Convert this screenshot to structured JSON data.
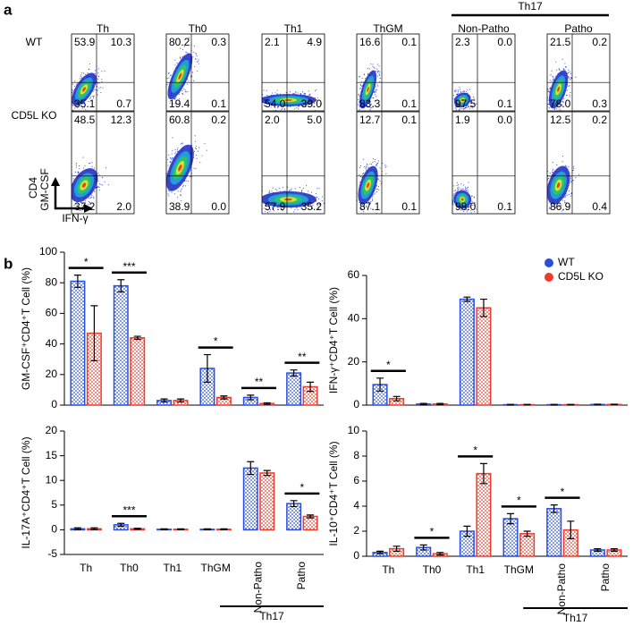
{
  "panel_a": {
    "label": "a",
    "columns": [
      "Th",
      "Th0",
      "Th1",
      "ThGM",
      "Non-Patho",
      "Patho"
    ],
    "group": "Th17",
    "rows": [
      {
        "name": "WT",
        "quadrants": [
          [
            "53.9",
            "10.3",
            "35.1",
            "0.7"
          ],
          [
            "80.2",
            "0.3",
            "19.4",
            "0.1"
          ],
          [
            "2.1",
            "4.9",
            "54.0",
            "39.0"
          ],
          [
            "16.6",
            "0.1",
            "83.3",
            "0.1"
          ],
          [
            "2.3",
            "0.0",
            "97.5",
            "0.1"
          ],
          [
            "21.5",
            "0.2",
            "78.0",
            "0.3"
          ]
        ]
      },
      {
        "name": "CD5L KO",
        "quadrants": [
          [
            "48.5",
            "12.3",
            "37.2",
            "2.0"
          ],
          [
            "60.8",
            "0.2",
            "38.9",
            "0.0"
          ],
          [
            "2.0",
            "5.0",
            "57.9",
            "35.2"
          ],
          [
            "12.7",
            "0.1",
            "87.1",
            "0.1"
          ],
          [
            "1.9",
            "0.0",
            "98.0",
            "0.1"
          ],
          [
            "12.5",
            "0.2",
            "86.9",
            "0.4"
          ]
        ]
      }
    ],
    "y_axis": [
      "CD4",
      "GM-CSF"
    ],
    "x_axis": "IFN-γ"
  },
  "panel_b": {
    "label": "b"
  },
  "chart_data": [
    {
      "type": "bar",
      "ylabel": "GM-CSF⁺CD4⁺T Cell (%)",
      "ylim": [
        0,
        100
      ],
      "yticks": [
        0,
        20,
        40,
        60,
        80,
        100
      ],
      "series": [
        {
          "color": "#2a4fe0",
          "values": [
            81,
            78,
            3,
            24,
            5,
            21
          ],
          "errors": [
            4,
            4,
            1,
            9,
            1.5,
            2
          ]
        },
        {
          "color": "#ef3b2c",
          "values": [
            47,
            44,
            3,
            5,
            1,
            12
          ],
          "errors": [
            18,
            1,
            1,
            1,
            0.5,
            3
          ]
        }
      ],
      "significance": [
        "*",
        "***",
        null,
        "*",
        "**",
        "**"
      ]
    },
    {
      "type": "bar",
      "ylabel": "IFN-γ⁺CD4⁺T Cell (%)",
      "ylim": [
        0,
        60
      ],
      "yticks": [
        0,
        20,
        40,
        60
      ],
      "legend": "top-right",
      "series": [
        {
          "name": "WT",
          "color": "#2a4fe0",
          "values": [
            9.5,
            0.5,
            49,
            0.2,
            0.2,
            0.3
          ],
          "errors": [
            3,
            0.3,
            1,
            0.1,
            0.1,
            0.1
          ]
        },
        {
          "name": "CD5L KO",
          "color": "#ef3b2c",
          "values": [
            3,
            0.5,
            45,
            0.2,
            0.2,
            0.3
          ],
          "errors": [
            1,
            0.3,
            4,
            0.1,
            0.1,
            0.1
          ]
        }
      ],
      "significance": [
        "*",
        null,
        null,
        null,
        null,
        null
      ]
    },
    {
      "type": "bar",
      "ylabel": "IL-17A⁺CD4⁺T Cell (%)",
      "ylim": [
        -5,
        20
      ],
      "yticks": [
        -5,
        0,
        5,
        10,
        15,
        20
      ],
      "categories": [
        "Th",
        "Th0",
        "Th1",
        "ThGM",
        "Non-Patho",
        "Patho"
      ],
      "group": "Th17",
      "series": [
        {
          "color": "#2a4fe0",
          "values": [
            0.2,
            1,
            0.1,
            0.1,
            12.5,
            5.3
          ],
          "errors": [
            0.2,
            0.3,
            0.1,
            0.1,
            1.3,
            0.6
          ]
        },
        {
          "color": "#ef3b2c",
          "values": [
            0.2,
            0.2,
            0.1,
            0.1,
            11.5,
            2.7
          ],
          "errors": [
            0.2,
            0.1,
            0.1,
            0.1,
            0.5,
            0.3
          ]
        }
      ],
      "significance": [
        null,
        "***",
        null,
        null,
        null,
        "*"
      ]
    },
    {
      "type": "bar",
      "ylabel": "IL-10⁺CD4⁺T Cell (%)",
      "ylim": [
        0,
        10
      ],
      "yticks": [
        0,
        2,
        4,
        6,
        8,
        10
      ],
      "categories": [
        "Th",
        "Th0",
        "Th1",
        "ThGM",
        "Non-Patho",
        "Patho"
      ],
      "group": "Th17",
      "series": [
        {
          "color": "#2a4fe0",
          "values": [
            0.3,
            0.7,
            2,
            3,
            3.8,
            0.5
          ],
          "errors": [
            0.1,
            0.2,
            0.4,
            0.4,
            0.3,
            0.1
          ]
        },
        {
          "color": "#ef3b2c",
          "values": [
            0.6,
            0.2,
            6.6,
            1.8,
            2.1,
            0.5
          ],
          "errors": [
            0.2,
            0.1,
            0.8,
            0.2,
            0.7,
            0.1
          ]
        }
      ],
      "significance": [
        null,
        "*",
        "*",
        "*",
        "*",
        null
      ]
    }
  ]
}
